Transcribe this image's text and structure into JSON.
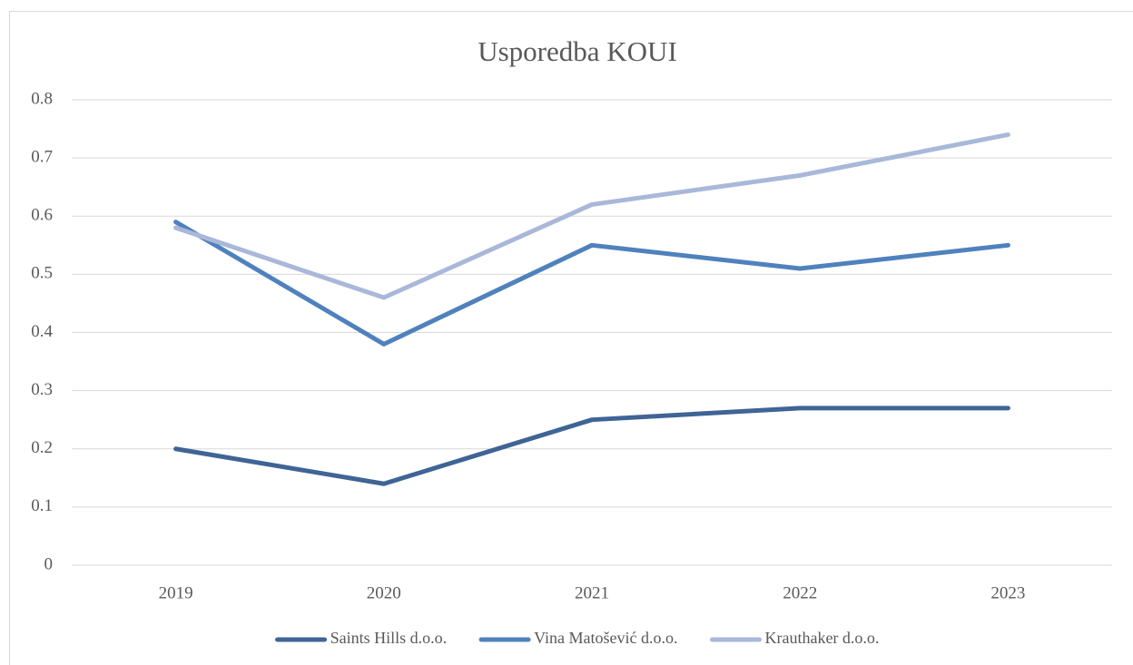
{
  "chart_data": {
    "type": "line",
    "title": "Usporedba KOUI",
    "categories": [
      "2019",
      "2020",
      "2021",
      "2022",
      "2023"
    ],
    "series": [
      {
        "name": "Saints Hills d.o.o.",
        "color": "#3f6496",
        "values": [
          0.2,
          0.14,
          0.25,
          0.27,
          0.27
        ]
      },
      {
        "name": "Vina Matošević d.o.o.",
        "color": "#4f81bd",
        "values": [
          0.59,
          0.38,
          0.55,
          0.51,
          0.55
        ]
      },
      {
        "name": "Krauthaker d.o.o.",
        "color": "#a9b8d9",
        "values": [
          0.58,
          0.46,
          0.62,
          0.67,
          0.74
        ]
      }
    ],
    "ylim": [
      0,
      0.8
    ],
    "yticks": [
      0,
      0.1,
      0.2,
      0.3,
      0.4,
      0.5,
      0.6,
      0.7,
      0.8
    ],
    "grid": true,
    "legend": "bottom"
  }
}
